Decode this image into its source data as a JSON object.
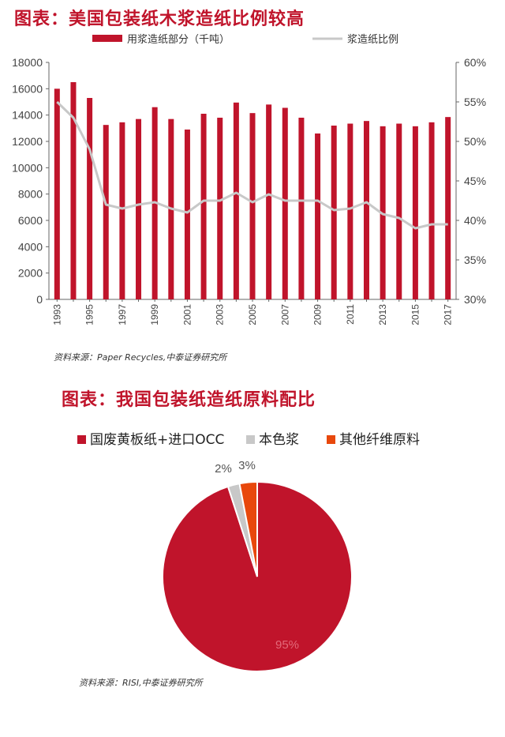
{
  "colors": {
    "title": "#c0142b",
    "bar": "#c0142b",
    "line": "#c8c8c8",
    "pie_main": "#c0142b",
    "pie_native": "#c8c8c8",
    "pie_other": "#e8480c"
  },
  "chart1": {
    "title": "图表：美国包装纸木浆造纸比例较高",
    "source": "资料来源：Paper Recycles,中泰证券研究所"
  },
  "chart2": {
    "title": "图表：我国包装纸造纸原料配比",
    "source": "资料来源：RISI,中泰证券研究所"
  },
  "chart_data": [
    {
      "type": "bar",
      "title": "图表：美国包装纸木浆造纸比例较高",
      "categories": [
        "1993",
        "1994",
        "1995",
        "1996",
        "1997",
        "1998",
        "1999",
        "2000",
        "2001",
        "2002",
        "2003",
        "2004",
        "2005",
        "2006",
        "2007",
        "2008",
        "2009",
        "2010",
        "2011",
        "2012",
        "2013",
        "2014",
        "2015",
        "2016",
        "2017"
      ],
      "x_tick_labels": [
        "1993",
        "1995",
        "1997",
        "1999",
        "2001",
        "2003",
        "2005",
        "2007",
        "2009",
        "2011",
        "2013",
        "2015",
        "2017"
      ],
      "series": [
        {
          "name": "用浆造纸部分（千吨）",
          "type": "bar",
          "axis": "left",
          "values": [
            16000,
            16500,
            15300,
            13250,
            13450,
            13700,
            14600,
            13700,
            12900,
            14100,
            13800,
            14950,
            14150,
            14800,
            14550,
            13800,
            12600,
            13200,
            13350,
            13550,
            13150,
            13350,
            13150,
            13450,
            13850
          ]
        },
        {
          "name": "浆造纸比例",
          "type": "line",
          "axis": "right",
          "values": [
            55.0,
            53.0,
            49.0,
            42.0,
            41.5,
            42.0,
            42.3,
            41.5,
            41.0,
            42.5,
            42.5,
            43.5,
            42.3,
            43.3,
            42.5,
            42.5,
            42.5,
            41.3,
            41.5,
            42.3,
            40.8,
            40.3,
            39.0,
            39.5,
            39.5
          ]
        }
      ],
      "y_left": {
        "lim": [
          0,
          18000
        ],
        "ticks": [
          "0",
          "2000",
          "4000",
          "6000",
          "8000",
          "10000",
          "12000",
          "14000",
          "16000",
          "18000"
        ]
      },
      "y_right": {
        "lim": [
          30,
          60
        ],
        "ticks": [
          "30%",
          "35%",
          "40%",
          "45%",
          "50%",
          "55%",
          "60%"
        ]
      },
      "legend_position": "top"
    },
    {
      "type": "pie",
      "title": "图表：我国包装纸造纸原料配比",
      "slices": [
        {
          "name": "国废黄板纸+进口OCC",
          "value": 95,
          "label": "95%"
        },
        {
          "name": "本色浆",
          "value": 2,
          "label": "2%"
        },
        {
          "name": "其他纤维原料",
          "value": 3,
          "label": "3%"
        }
      ],
      "legend_position": "top"
    }
  ]
}
